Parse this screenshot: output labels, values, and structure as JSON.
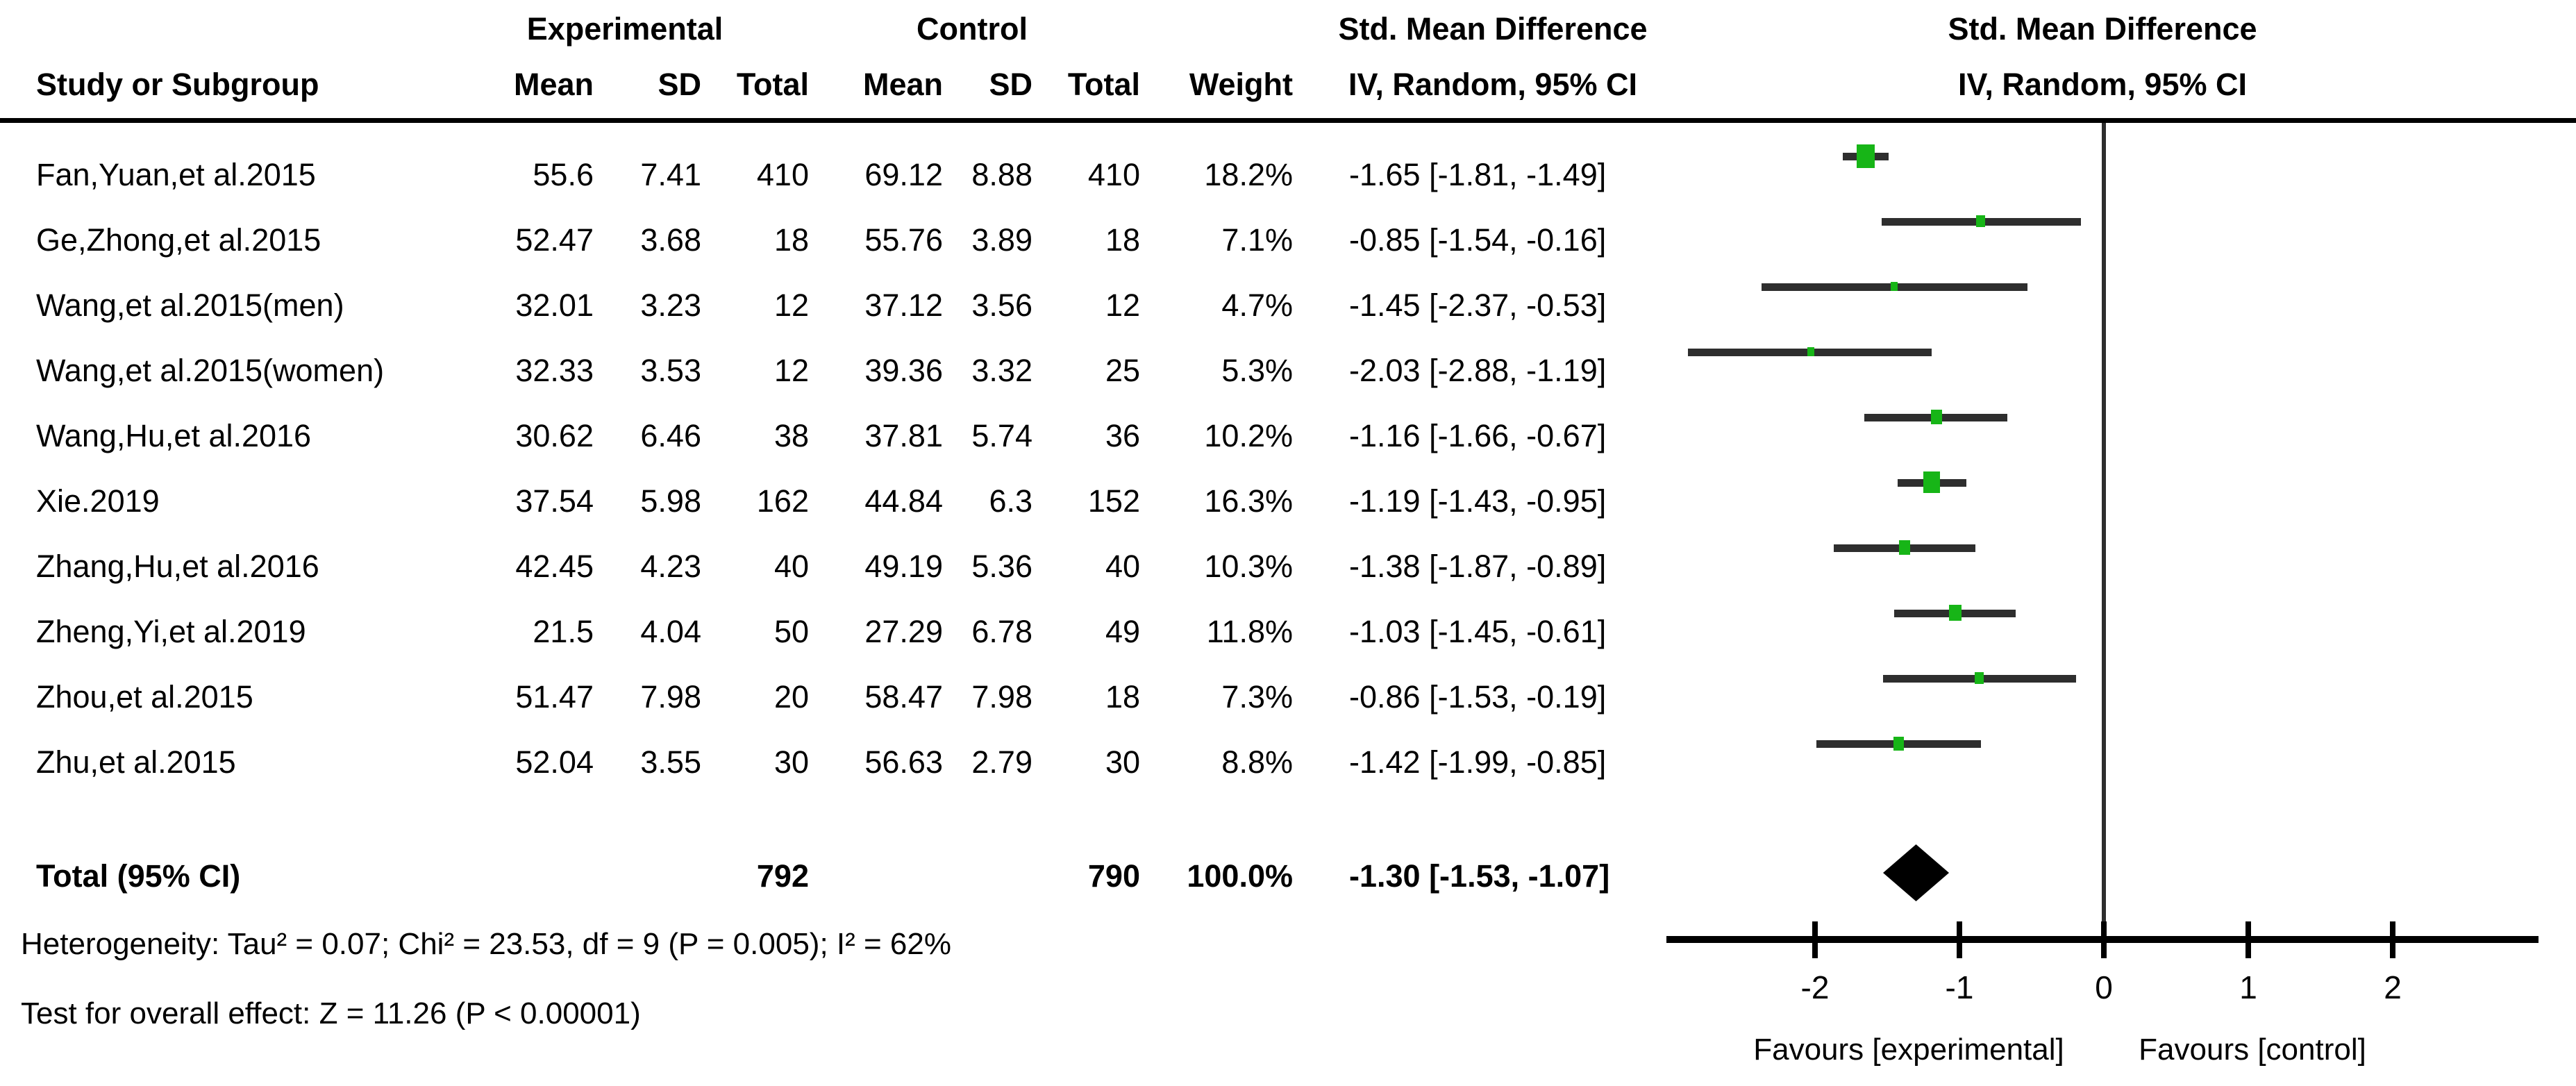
{
  "chart_data": {
    "type": "forest",
    "title": "Std. Mean Difference forest plot (IV, Random, 95% CI)",
    "group_headers": {
      "experimental": "Experimental",
      "control": "Control"
    },
    "effect_header": "Std. Mean Difference",
    "method_header": "IV, Random, 95% CI",
    "plot_effect_header": "Std. Mean Difference",
    "plot_method_header": "IV, Random, 95% CI",
    "columns": {
      "study": "Study or Subgroup",
      "mean_exp": "Mean",
      "sd_exp": "SD",
      "total_exp": "Total",
      "mean_ctrl": "Mean",
      "sd_ctrl": "SD",
      "total_ctrl": "Total",
      "weight": "Weight"
    },
    "studies": [
      {
        "name": "Fan,Yuan,et al.2015",
        "exp_mean": "55.6",
        "exp_sd": "7.41",
        "exp_total": "410",
        "ctrl_mean": "69.12",
        "ctrl_sd": "8.88",
        "ctrl_total": "410",
        "weight": "18.2%",
        "weight_pct": 18.2,
        "ci_label": "-1.65 [-1.81, -1.49]",
        "est": -1.65,
        "lo": -1.81,
        "hi": -1.49
      },
      {
        "name": "Ge,Zhong,et al.2015",
        "exp_mean": "52.47",
        "exp_sd": "3.68",
        "exp_total": "18",
        "ctrl_mean": "55.76",
        "ctrl_sd": "3.89",
        "ctrl_total": "18",
        "weight": "7.1%",
        "weight_pct": 7.1,
        "ci_label": "-0.85 [-1.54, -0.16]",
        "est": -0.85,
        "lo": -1.54,
        "hi": -0.16
      },
      {
        "name": "Wang,et al.2015(men)",
        "exp_mean": "32.01",
        "exp_sd": "3.23",
        "exp_total": "12",
        "ctrl_mean": "37.12",
        "ctrl_sd": "3.56",
        "ctrl_total": "12",
        "weight": "4.7%",
        "weight_pct": 4.7,
        "ci_label": "-1.45 [-2.37, -0.53]",
        "est": -1.45,
        "lo": -2.37,
        "hi": -0.53
      },
      {
        "name": "Wang,et al.2015(women)",
        "exp_mean": "32.33",
        "exp_sd": "3.53",
        "exp_total": "12",
        "ctrl_mean": "39.36",
        "ctrl_sd": "3.32",
        "ctrl_total": "25",
        "weight": "5.3%",
        "weight_pct": 5.3,
        "ci_label": "-2.03 [-2.88, -1.19]",
        "est": -2.03,
        "lo": -2.88,
        "hi": -1.19
      },
      {
        "name": "Wang,Hu,et al.2016",
        "exp_mean": "30.62",
        "exp_sd": "6.46",
        "exp_total": "38",
        "ctrl_mean": "37.81",
        "ctrl_sd": "5.74",
        "ctrl_total": "36",
        "weight": "10.2%",
        "weight_pct": 10.2,
        "ci_label": "-1.16 [-1.66, -0.67]",
        "est": -1.16,
        "lo": -1.66,
        "hi": -0.67
      },
      {
        "name": "Xie.2019",
        "exp_mean": "37.54",
        "exp_sd": "5.98",
        "exp_total": "162",
        "ctrl_mean": "44.84",
        "ctrl_sd": "6.3",
        "ctrl_total": "152",
        "weight": "16.3%",
        "weight_pct": 16.3,
        "ci_label": "-1.19 [-1.43, -0.95]",
        "est": -1.19,
        "lo": -1.43,
        "hi": -0.95
      },
      {
        "name": "Zhang,Hu,et al.2016",
        "exp_mean": "42.45",
        "exp_sd": "4.23",
        "exp_total": "40",
        "ctrl_mean": "49.19",
        "ctrl_sd": "5.36",
        "ctrl_total": "40",
        "weight": "10.3%",
        "weight_pct": 10.3,
        "ci_label": "-1.38 [-1.87, -0.89]",
        "est": -1.38,
        "lo": -1.87,
        "hi": -0.89
      },
      {
        "name": "Zheng,Yi,et al.2019",
        "exp_mean": "21.5",
        "exp_sd": "4.04",
        "exp_total": "50",
        "ctrl_mean": "27.29",
        "ctrl_sd": "6.78",
        "ctrl_total": "49",
        "weight": "11.8%",
        "weight_pct": 11.8,
        "ci_label": "-1.03 [-1.45, -0.61]",
        "est": -1.03,
        "lo": -1.45,
        "hi": -0.61
      },
      {
        "name": "Zhou,et al.2015",
        "exp_mean": "51.47",
        "exp_sd": "7.98",
        "exp_total": "20",
        "ctrl_mean": "58.47",
        "ctrl_sd": "7.98",
        "ctrl_total": "18",
        "weight": "7.3%",
        "weight_pct": 7.3,
        "ci_label": "-0.86 [-1.53, -0.19]",
        "est": -0.86,
        "lo": -1.53,
        "hi": -0.19
      },
      {
        "name": "Zhu,et al.2015",
        "exp_mean": "52.04",
        "exp_sd": "3.55",
        "exp_total": "30",
        "ctrl_mean": "56.63",
        "ctrl_sd": "2.79",
        "ctrl_total": "30",
        "weight": "8.8%",
        "weight_pct": 8.8,
        "ci_label": "-1.42 [-1.99, -0.85]",
        "est": -1.42,
        "lo": -1.99,
        "hi": -0.85
      }
    ],
    "total": {
      "label": "Total (95% CI)",
      "exp_total": "792",
      "ctrl_total": "790",
      "weight": "100.0%",
      "ci_label": "-1.30 [-1.53, -1.07]",
      "est": -1.3,
      "lo": -1.53,
      "hi": -1.07
    },
    "footnotes": {
      "heterogeneity": "Heterogeneity: Tau² = 0.07; Chi² = 23.53, df = 9 (P = 0.005); I² = 62%",
      "overall_effect": "Test for overall effect: Z = 11.26 (P < 0.00001)"
    },
    "x_ticks": [
      {
        "value": -2,
        "label": "-2"
      },
      {
        "value": -1,
        "label": "-1"
      },
      {
        "value": 0,
        "label": "0"
      },
      {
        "value": 1,
        "label": "1"
      },
      {
        "value": 2,
        "label": "2"
      }
    ],
    "axis_range": [
      -2,
      2
    ],
    "favours": {
      "left": "Favours [experimental]",
      "right": "Favours [control]"
    },
    "colors": {
      "marker_green": "#17b517",
      "ci_line": "#2e2e2e",
      "diamond": "#000000"
    },
    "legend_position": "none",
    "grid": false
  }
}
